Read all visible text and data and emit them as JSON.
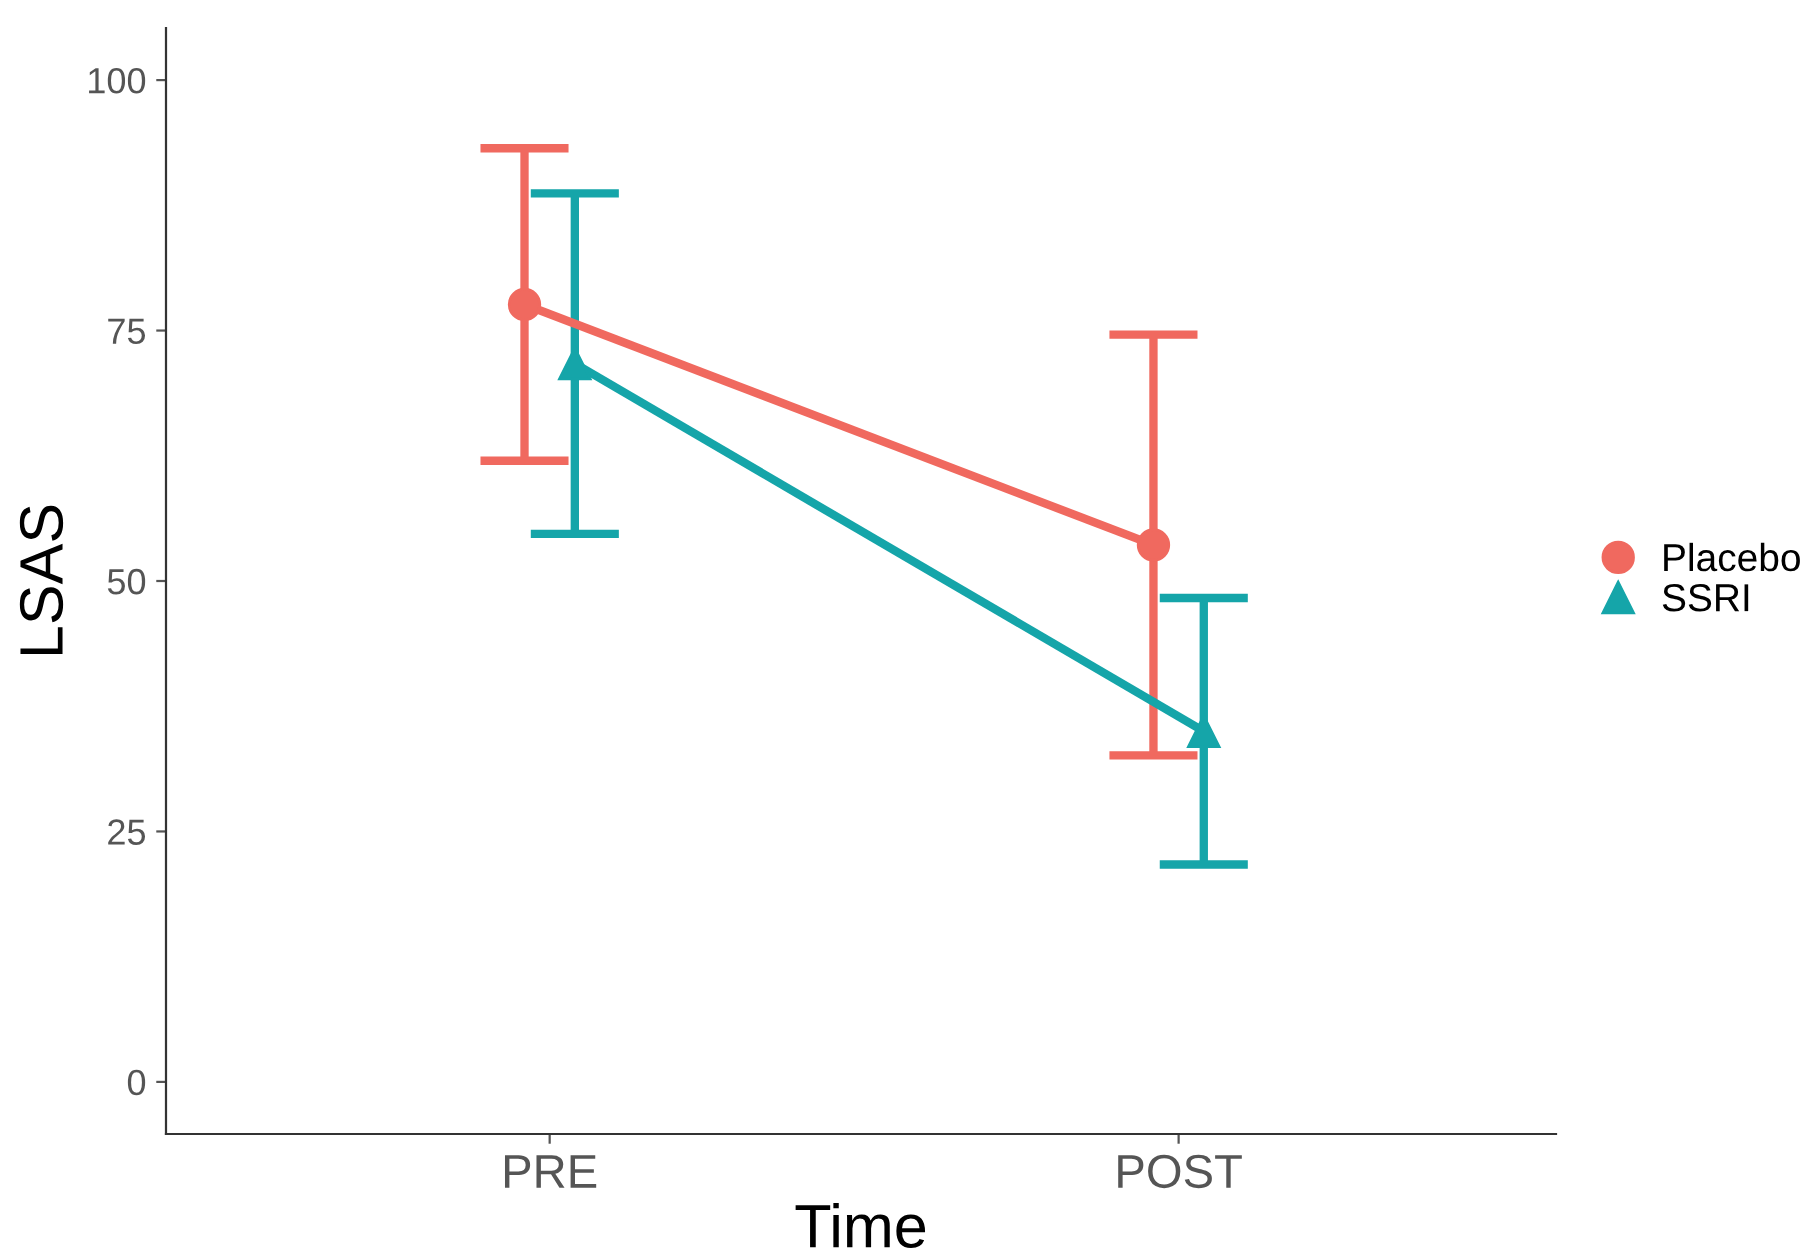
{
  "chart_data": {
    "type": "line",
    "xlabel": "Time",
    "ylabel": "LSAS",
    "categories": [
      "PRE",
      "POST"
    ],
    "series": [
      {
        "name": "Placebo",
        "color": "#f0695f",
        "marker": "circle",
        "values": [
          77.6,
          53.6
        ],
        "errors": [
          [
            62,
            93.2
          ],
          [
            32.6,
            74.6
          ]
        ]
      },
      {
        "name": "SSRI",
        "color": "#15a5a9",
        "marker": "triangle",
        "values": [
          71.7,
          35
        ],
        "errors": [
          [
            54.7,
            88.7
          ],
          [
            21.7,
            48.3
          ]
        ]
      }
    ],
    "ylim": [
      -5.2,
      105.2
    ],
    "yticks": [
      0,
      25,
      50,
      75,
      100
    ],
    "grid": false,
    "legend": "right"
  }
}
